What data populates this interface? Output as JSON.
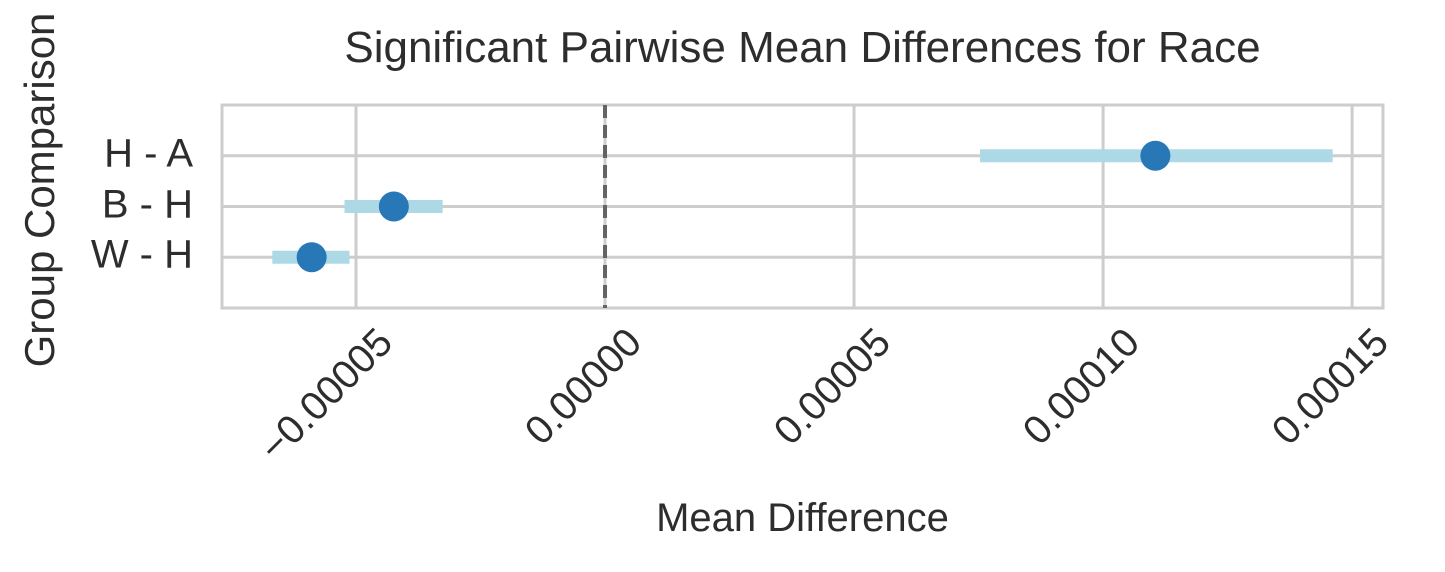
{
  "chart_data": {
    "type": "scatter",
    "subtype": "pointrange-horizontal",
    "title": "Significant Pairwise Mean Differences for Race",
    "xlabel": "Mean Difference",
    "ylabel": "Group Comparison",
    "categories": [
      "H - A",
      "B - H",
      "W - H"
    ],
    "points": [
      {
        "group": "H - A",
        "mean": 0.0001105,
        "ci_low": 7.53e-05,
        "ci_high": 0.0001461
      },
      {
        "group": "B - H",
        "mean": -4.24e-05,
        "ci_low": -5.23e-05,
        "ci_high": -3.26e-05
      },
      {
        "group": "W - H",
        "mean": -5.89e-05,
        "ci_low": -6.68e-05,
        "ci_high": -5.13e-05
      }
    ],
    "xticks": [
      -5e-05,
      0.0,
      5e-05,
      0.0001,
      0.00015
    ],
    "xtick_labels": [
      "−0.00005",
      "0.00000",
      "0.00005",
      "0.00010",
      "0.00015"
    ],
    "xlim": [
      -7.69e-05,
      0.0001562
    ],
    "reference_line_x": 0.0,
    "grid": true,
    "legend": false,
    "colors": {
      "point": "#2878b8",
      "ci_bar": "#add8e6",
      "grid": "#cdcdcd",
      "reference_line": "#636363",
      "text": "#2d2d2d",
      "background": "#ffffff"
    }
  }
}
